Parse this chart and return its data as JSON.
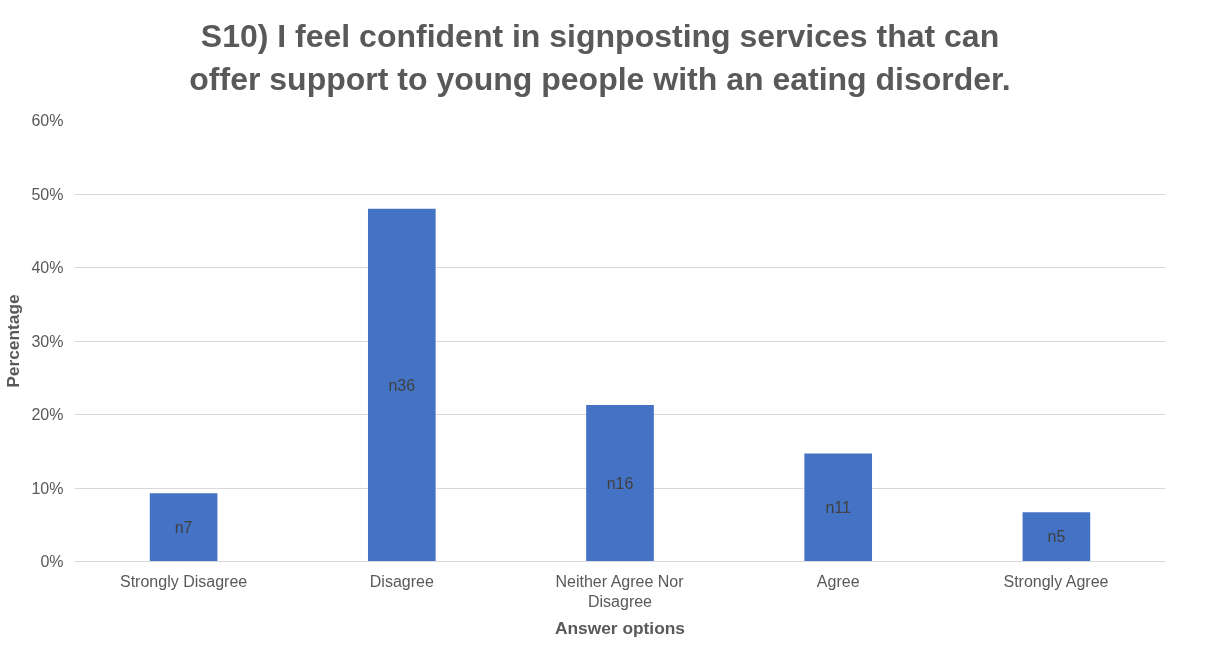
{
  "chart_data": {
    "type": "bar",
    "title": "S10) I feel confident in signposting services that can offer support to young people with an eating disorder.",
    "xlabel": "Answer options",
    "ylabel": "Percentage",
    "categories": [
      "Strongly Disagree",
      "Disagree",
      "Neither Agree Nor Disagree",
      "Agree",
      "Strongly Agree"
    ],
    "values": [
      9.3,
      48,
      21.3,
      14.7,
      6.7
    ],
    "value_labels": [
      "n7",
      "n36",
      "n16",
      "n11",
      "n5"
    ],
    "color": "#4472c4",
    "ylim": [
      0,
      60
    ],
    "yticks": [
      {
        "value": 0,
        "label": "0%"
      },
      {
        "value": 10,
        "label": "10%"
      },
      {
        "value": 20,
        "label": "20%"
      },
      {
        "value": 30,
        "label": "30%"
      },
      {
        "value": 40,
        "label": "40%"
      },
      {
        "value": 50,
        "label": "50%"
      },
      {
        "value": 60,
        "label": "60%"
      }
    ],
    "grid": "y"
  }
}
